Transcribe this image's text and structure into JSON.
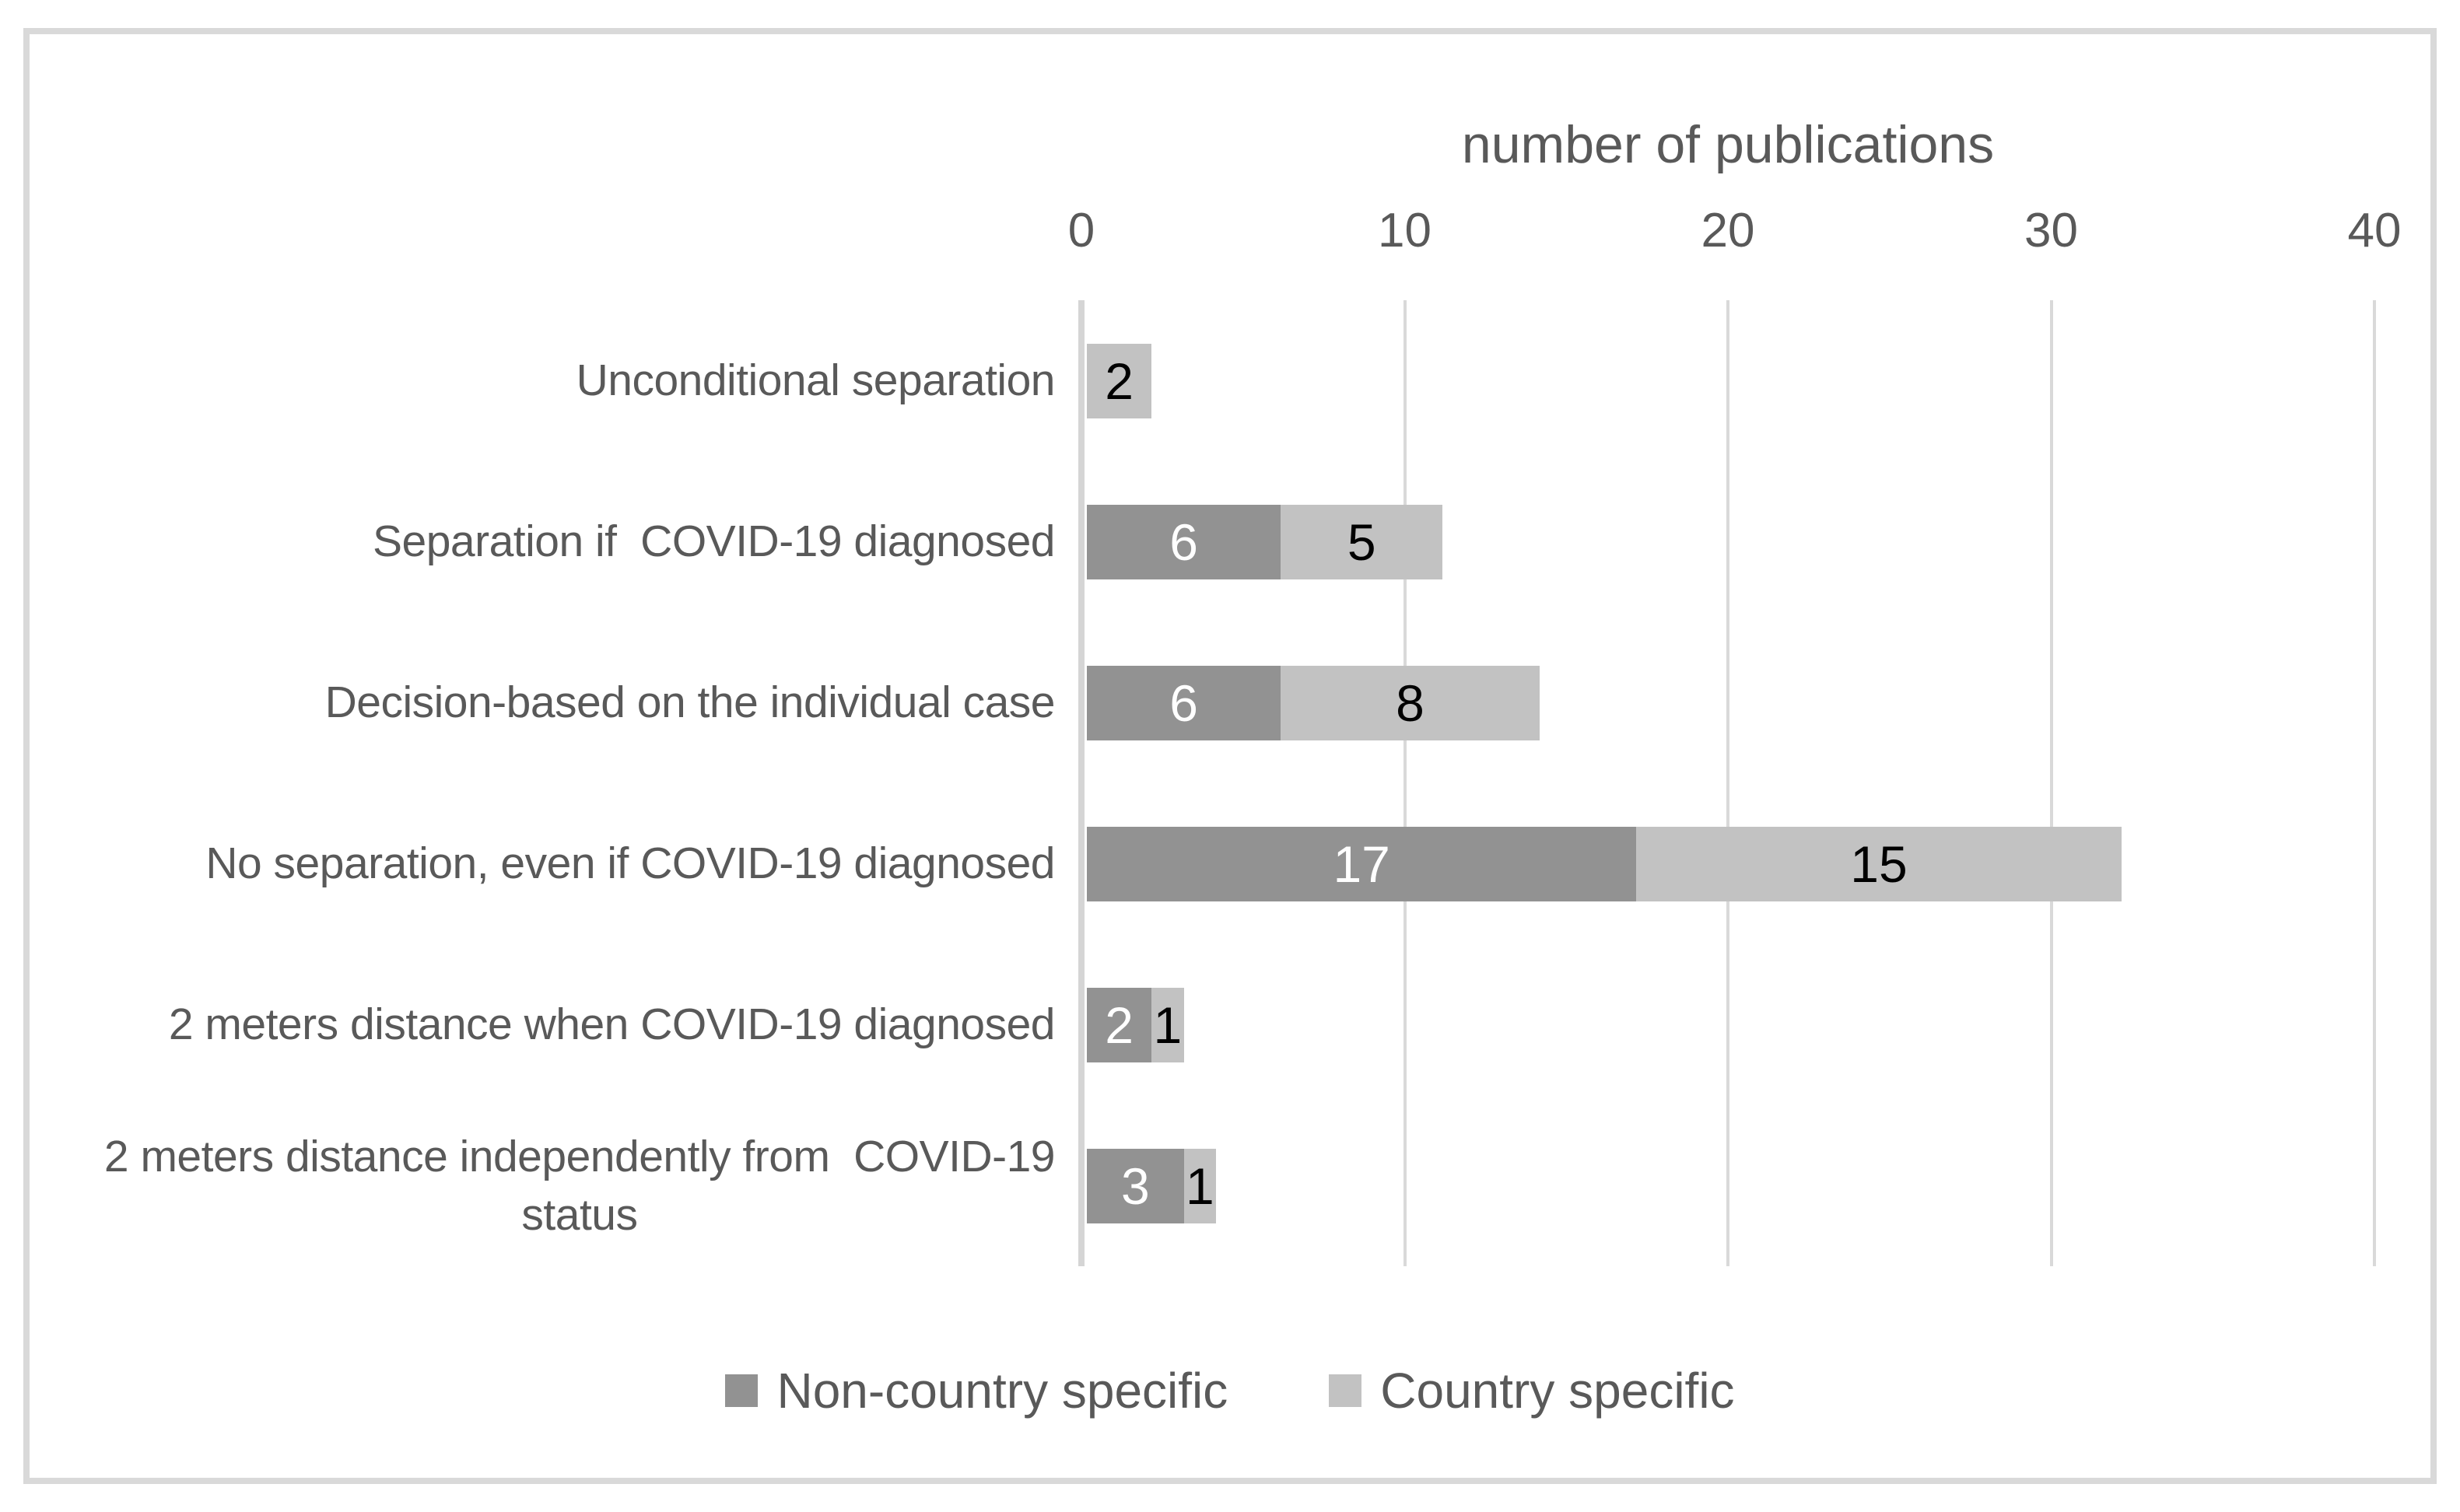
{
  "figure": {
    "background": "#ffffff",
    "border_color": "#d9d9d9"
  },
  "chart_data": {
    "type": "bar",
    "orientation": "horizontal",
    "stacked": true,
    "title": "number of publications",
    "xlim": [
      0,
      40
    ],
    "xticks": [
      0,
      10,
      20,
      30,
      40
    ],
    "grid": true,
    "legend_position": "bottom",
    "categories": [
      "Unconditional separation",
      "Separation if  COVID-19 diagnosed",
      "Decision-based on the individual case",
      "No separation, even if COVID-19 diagnosed",
      "2 meters distance when COVID-19 diagnosed",
      "2 meters distance independently from  COVID-19\nstatus"
    ],
    "series": [
      {
        "name": "Non-country specific",
        "color": "#929292",
        "label_color": "#ffffff",
        "values": [
          0,
          6,
          6,
          17,
          2,
          3
        ]
      },
      {
        "name": "Country specific",
        "color": "#c2c2c2",
        "label_color": "#000000",
        "values": [
          2,
          5,
          8,
          15,
          1,
          1
        ]
      }
    ],
    "colors": {
      "text": "#595959",
      "gridline": "#d9d9d9",
      "axis_line": "#d5d5d5"
    }
  }
}
